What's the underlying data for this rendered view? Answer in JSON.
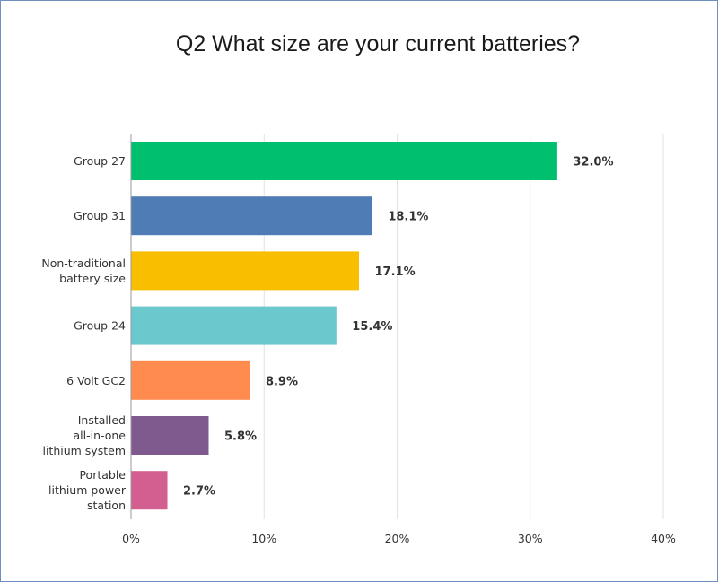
{
  "chart_data": {
    "type": "bar",
    "orientation": "horizontal",
    "title": "Q2 What size are your current batteries?",
    "categories": [
      [
        "Group 27"
      ],
      [
        "Group 31"
      ],
      [
        "Non-traditional",
        "battery size"
      ],
      [
        "Group 24"
      ],
      [
        "6 Volt GC2"
      ],
      [
        "Installed",
        "all-in-one",
        "lithium system"
      ],
      [
        "Portable",
        "lithium power",
        "station"
      ]
    ],
    "values": [
      32.0,
      18.1,
      17.1,
      15.4,
      8.9,
      5.8,
      2.7
    ],
    "value_labels": [
      "32.0%",
      "18.1%",
      "17.1%",
      "15.4%",
      "8.9%",
      "5.8%",
      "2.7%"
    ],
    "colors": [
      "#00bf6f",
      "#507cb6",
      "#f9be00",
      "#6bc8cd",
      "#ff8b4f",
      "#7f5a8f",
      "#d25f90"
    ],
    "xlim": [
      0,
      40
    ],
    "ticks": [
      0,
      10,
      20,
      30,
      40
    ],
    "tick_labels": [
      "0%",
      "10%",
      "20%",
      "30%",
      "40%"
    ],
    "grid": true
  }
}
